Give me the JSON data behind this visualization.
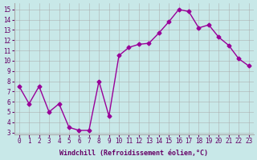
{
  "x": [
    0,
    1,
    2,
    3,
    4,
    5,
    6,
    7,
    8,
    9,
    10,
    11,
    12,
    13,
    14,
    15,
    16,
    17,
    18,
    19,
    20,
    21,
    22,
    23
  ],
  "y": [
    7.5,
    5.8,
    7.5,
    5.0,
    5.8,
    3.5,
    3.2,
    3.2,
    8.0,
    4.6,
    10.5,
    11.3,
    11.6,
    11.7,
    12.7,
    13.8,
    15.0,
    14.8,
    13.2,
    13.5,
    12.3,
    11.5,
    10.2,
    9.5
  ],
  "line_color": "#990099",
  "marker": "D",
  "markersize": 2.5,
  "linewidth": 1.0,
  "xlabel": "Windchill (Refroidissement éolien,°C)",
  "xlim": [
    -0.5,
    23.5
  ],
  "ylim": [
    2.8,
    15.6
  ],
  "yticks": [
    3,
    4,
    5,
    6,
    7,
    8,
    9,
    10,
    11,
    12,
    13,
    14,
    15
  ],
  "xticks": [
    0,
    1,
    2,
    3,
    4,
    5,
    6,
    7,
    8,
    9,
    10,
    11,
    12,
    13,
    14,
    15,
    16,
    17,
    18,
    19,
    20,
    21,
    22,
    23
  ],
  "background_color": "#c8e8e8",
  "grid_color": "#aaaaaa",
  "tick_color": "#660066",
  "label_color": "#660066",
  "font_family": "monospace"
}
